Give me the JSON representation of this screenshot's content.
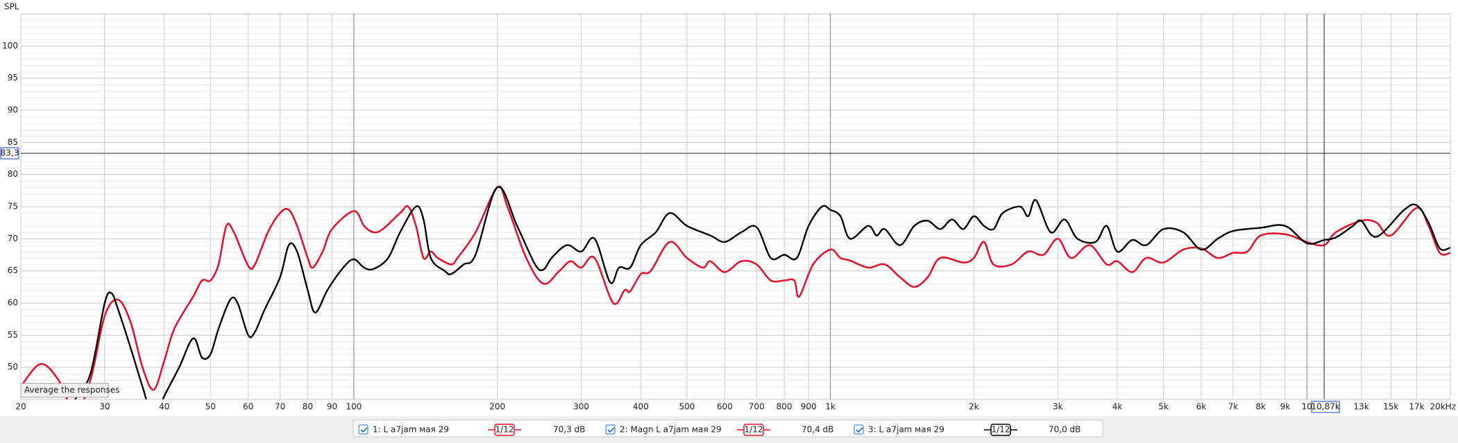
{
  "chart_data": {
    "type": "line",
    "y_label": "SPL",
    "xlog": true,
    "grid": true,
    "xlim": [
      20,
      20000
    ],
    "ylim": [
      45,
      105
    ],
    "xticks": [
      20,
      30,
      40,
      50,
      60,
      70,
      80,
      90,
      100,
      200,
      300,
      400,
      500,
      600,
      700,
      800,
      900,
      {
        "value": 1000,
        "label": "1k"
      },
      {
        "value": 2000,
        "label": "2k"
      },
      {
        "value": 3000,
        "label": "3k"
      },
      {
        "value": 4000,
        "label": "4k"
      },
      {
        "value": 5000,
        "label": "5k"
      },
      {
        "value": 6000,
        "label": "6k"
      },
      {
        "value": 7000,
        "label": "7k"
      },
      {
        "value": 8000,
        "label": "8k"
      },
      {
        "value": 9000,
        "label": "9k"
      },
      {
        "value": 10000,
        "label": "10"
      },
      {
        "value": 13000,
        "label": "13k",
        "faint": true
      },
      {
        "value": 15000,
        "label": "15k",
        "faint": true
      },
      {
        "value": 17000,
        "label": "17k",
        "faint": true
      },
      {
        "value": 20000,
        "label": "20kHz"
      }
    ],
    "yticks": [
      50,
      55,
      60,
      65,
      70,
      75,
      80,
      85,
      90,
      95,
      100
    ],
    "cursor": {
      "y": 83.3,
      "y_label": "83,3",
      "x": 10870,
      "x_label": "10,87k"
    },
    "tooltip": "Average the responses",
    "series": [
      {
        "name": "1: L a7jam мая 29",
        "level": "70,3 dB",
        "smoothing": "1/12",
        "color": "#e8102e",
        "x": [
          20,
          22,
          24,
          26,
          28,
          30,
          32,
          34,
          36,
          38,
          40,
          42,
          46,
          48,
          50,
          52,
          54,
          56,
          60,
          62,
          66,
          70,
          73,
          76,
          80,
          82,
          86,
          90,
          100,
          105,
          110,
          115,
          125,
          130,
          135,
          140,
          145,
          150,
          160,
          165,
          180,
          200,
          210,
          230,
          250,
          270,
          285,
          300,
          320,
          350,
          370,
          380,
          400,
          420,
          460,
          500,
          540,
          560,
          600,
          650,
          700,
          750,
          800,
          840,
          860,
          920,
          1000,
          1050,
          1100,
          1200,
          1300,
          1400,
          1500,
          1600,
          1700,
          1900,
          2000,
          2100,
          2200,
          2400,
          2600,
          2800,
          3000,
          3200,
          3500,
          3800,
          4000,
          4300,
          4600,
          5000,
          5500,
          6000,
          6500,
          7000,
          7500,
          8000,
          9000,
          10000,
          10870,
          11500,
          13000,
          14000,
          15000,
          17000,
          18000,
          19000,
          20000
        ],
        "values": [
          47,
          50.5,
          48,
          43,
          48,
          58,
          60.5,
          57,
          50,
          46.5,
          51,
          56,
          61,
          63.5,
          63.5,
          66,
          72,
          71,
          65.8,
          66,
          71,
          74,
          74.5,
          72,
          67,
          65.5,
          68,
          71.5,
          74.3,
          72,
          71,
          71.5,
          74,
          75,
          72,
          67,
          68,
          67,
          66,
          67,
          71,
          78,
          75,
          67,
          63,
          65,
          66.5,
          65.5,
          67,
          60,
          62,
          61.8,
          64.5,
          65,
          69.5,
          67,
          65.5,
          66.5,
          64.8,
          66.5,
          66,
          63.5,
          63.5,
          63.5,
          61,
          66,
          68.3,
          67,
          66.6,
          65.5,
          66,
          64,
          62.5,
          64,
          67,
          66.3,
          67,
          69.5,
          66,
          66,
          68,
          67.5,
          70,
          67,
          69,
          66,
          66.5,
          64.8,
          67,
          66.3,
          68.3,
          68.5,
          67,
          67.8,
          68,
          70.5,
          70.7,
          69.5,
          69,
          71,
          72.8,
          72.5,
          70.5,
          74.8,
          72,
          67.8,
          67.8
        ]
      },
      {
        "name": "2: Magn L a7jam мая 29",
        "level": "70,4 dB",
        "smoothing": "1/12",
        "color": "#e8102e",
        "x": [
          20,
          22,
          24,
          26,
          28,
          30,
          32,
          34,
          36,
          38,
          40,
          42,
          46,
          48,
          50,
          52,
          54,
          56,
          60,
          62,
          66,
          70,
          73,
          76,
          80,
          82,
          86,
          90,
          100,
          105,
          110,
          115,
          125,
          130,
          135,
          140,
          145,
          150,
          160,
          165,
          180,
          200,
          210,
          230,
          250,
          270,
          285,
          300,
          320,
          350,
          370,
          380,
          400,
          420,
          460,
          500,
          540,
          560,
          600,
          650,
          700,
          750,
          800,
          840,
          860,
          920,
          1000,
          1050,
          1100,
          1200,
          1300,
          1400,
          1500,
          1600,
          1700,
          1900,
          2000,
          2100,
          2200,
          2400,
          2600,
          2800,
          3000,
          3200,
          3500,
          3800,
          4000,
          4300,
          4600,
          5000,
          5500,
          6000,
          6500,
          7000,
          7500,
          8000,
          9000,
          10000,
          10870,
          11500,
          13000,
          14000,
          15000,
          17000,
          18000,
          19000,
          20000
        ],
        "values": [
          47,
          50.5,
          48,
          43,
          48,
          58,
          60.5,
          57,
          50,
          46.5,
          51,
          56,
          61,
          63.5,
          63.5,
          66,
          72,
          71,
          65.8,
          66,
          71,
          74,
          74.5,
          72,
          67,
          65.5,
          68,
          71.5,
          74.3,
          72,
          71,
          71.5,
          74,
          75,
          72,
          67,
          68,
          67,
          66,
          67,
          71,
          78,
          75,
          67,
          63,
          65,
          66.5,
          65.5,
          67,
          60,
          62,
          61.8,
          64.5,
          65,
          69.5,
          67,
          65.5,
          66.5,
          64.8,
          66.5,
          66,
          63.5,
          63.5,
          63.5,
          61,
          66,
          68.3,
          67,
          66.6,
          65.5,
          66,
          64,
          62.5,
          64,
          67,
          66.3,
          67,
          69.5,
          66,
          66,
          68,
          67.5,
          70,
          67,
          69,
          66,
          66.5,
          64.8,
          67,
          66.3,
          68.3,
          68.5,
          67,
          67.8,
          68,
          70.5,
          70.7,
          69.5,
          69,
          71,
          72.8,
          72.5,
          70.5,
          74.8,
          72,
          67.8,
          67.8
        ]
      },
      {
        "name": "3: L a7jam мая 29",
        "level": "70,0 dB",
        "smoothing": "1/12",
        "color": "#000000",
        "x": [
          26,
          28,
          30,
          31,
          32,
          34,
          36,
          38,
          40,
          43,
          46,
          48,
          50,
          52,
          55,
          57,
          60,
          62,
          65,
          70,
          73,
          76,
          80,
          83,
          88,
          95,
          100,
          105,
          110,
          118,
          125,
          135,
          140,
          145,
          155,
          160,
          170,
          180,
          200,
          220,
          240,
          250,
          260,
          280,
          300,
          320,
          345,
          360,
          380,
          400,
          430,
          460,
          500,
          560,
          600,
          650,
          700,
          750,
          800,
          850,
          900,
          960,
          1000,
          1050,
          1100,
          1200,
          1250,
          1300,
          1400,
          1500,
          1600,
          1700,
          1800,
          1900,
          2000,
          2100,
          2200,
          2300,
          2500,
          2600,
          2700,
          2900,
          3100,
          3300,
          3600,
          3800,
          4000,
          4300,
          4600,
          5000,
          5500,
          6000,
          6500,
          7000,
          8000,
          9000,
          10000,
          10870,
          11500,
          12500,
          13000,
          14000,
          16000,
          17000,
          18000,
          19000,
          20000
        ],
        "values": [
          45,
          49,
          60,
          61.5,
          59,
          53,
          47,
          42,
          45.5,
          50,
          54.5,
          51.5,
          52,
          56,
          60.5,
          60,
          55,
          55.5,
          59,
          64,
          69,
          68,
          62,
          58.5,
          62,
          65.5,
          66.8,
          65.5,
          65.3,
          67,
          71,
          75,
          73,
          67,
          65,
          64.5,
          66,
          67.5,
          78,
          72,
          66,
          65.2,
          67,
          69,
          68,
          70,
          63.2,
          65.5,
          65.5,
          69,
          71,
          74,
          72,
          70.5,
          69.5,
          71,
          71.8,
          67,
          67.5,
          67,
          72,
          75,
          74.5,
          73.5,
          70,
          72,
          70.5,
          71.5,
          69,
          72,
          72.8,
          71.5,
          73,
          71.5,
          73.5,
          72,
          71.5,
          74,
          75,
          73.5,
          76,
          71,
          73,
          70,
          69.5,
          72,
          68,
          69.8,
          69,
          71.5,
          71,
          68.3,
          70,
          71.2,
          71.7,
          72,
          69.3,
          69.8,
          70.2,
          72,
          72.8,
          70.3,
          74.5,
          75.2,
          72.5,
          68.5,
          68.6
        ]
      }
    ]
  }
}
